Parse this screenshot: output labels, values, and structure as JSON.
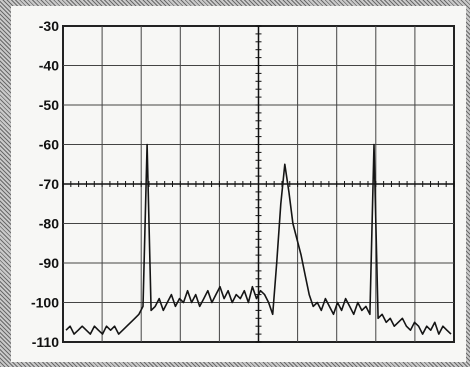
{
  "chart_data": {
    "type": "line",
    "title": "",
    "xlabel": "",
    "ylabel": "",
    "y_tick_labels": [
      "-30",
      "-40",
      "-50",
      "-60",
      "-70",
      "-80",
      "-90",
      "-100",
      "-110"
    ],
    "ylim": [
      -110,
      -30
    ],
    "x_divisions": 10,
    "grid": true,
    "series": [
      {
        "values": [
          -107,
          -106,
          -108,
          -107,
          -106,
          -107,
          -108,
          -106,
          -107,
          -108,
          -106,
          -107,
          -106,
          -108,
          -107,
          -106,
          -105,
          -104,
          -103,
          -101,
          -60,
          -102,
          -101,
          -99,
          -102,
          -100,
          -98,
          -101,
          -99,
          -100,
          -97,
          -100,
          -98,
          -101,
          -99,
          -97,
          -100,
          -98,
          -96,
          -99,
          -97,
          -100,
          -98,
          -99,
          -97,
          -100,
          -96,
          -99,
          -97,
          -98,
          -100,
          -103,
          -90,
          -75,
          -65,
          -72,
          -80,
          -84,
          -88,
          -93,
          -98,
          -101,
          -100,
          -102,
          -99,
          -101,
          -103,
          -100,
          -102,
          -99,
          -101,
          -103,
          -100,
          -102,
          -101,
          -103,
          -60,
          -104,
          -103,
          -105,
          -104,
          -106,
          -105,
          -104,
          -106,
          -107,
          -105,
          -106,
          -108,
          -106,
          -107,
          -105,
          -108,
          -106,
          -107,
          -108
        ]
      }
    ]
  }
}
